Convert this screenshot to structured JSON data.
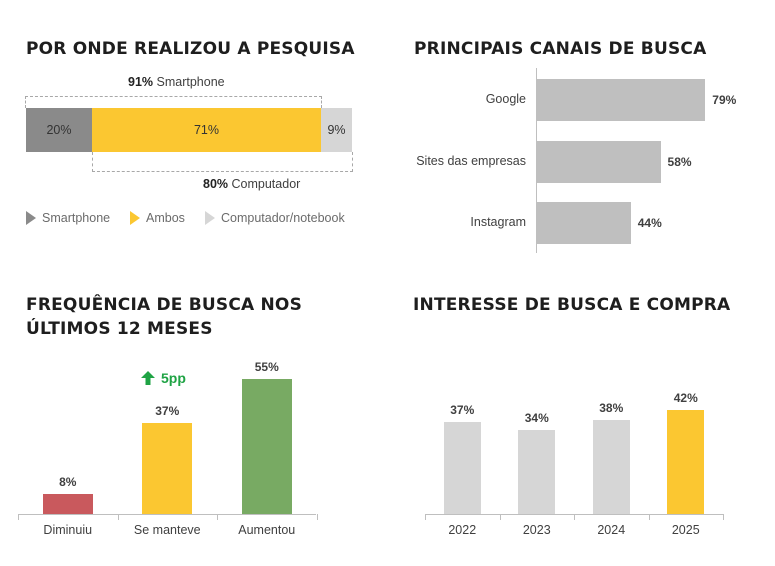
{
  "colors": {
    "dark_gray": "#8a8a8a",
    "yellow": "#fbc731",
    "light_gray": "#d6d6d6",
    "bar_gray": "#bfbfbf",
    "red": "#c9595d",
    "green": "#78aa63",
    "arrow_green": "#1fa344"
  },
  "chart_data": [
    {
      "type": "bar",
      "orientation": "horizontal-stacked",
      "title": "POR ONDE REALIZOU A PESQUISA",
      "series": [
        {
          "name": "Smartphone",
          "values": [
            20
          ],
          "label": "20%",
          "color": "#8a8a8a"
        },
        {
          "name": "Ambos",
          "values": [
            71
          ],
          "label": "71%",
          "color": "#fbc731"
        },
        {
          "name": "Computador/notebook",
          "values": [
            9
          ],
          "label": "9%",
          "color": "#d6d6d6"
        }
      ],
      "annotations": [
        {
          "value": "91%",
          "text": "Smartphone"
        },
        {
          "value": "80%",
          "text": "Computador"
        }
      ],
      "legend": "bottom"
    },
    {
      "type": "bar",
      "orientation": "horizontal",
      "title": "PRINCIPAIS CANAIS DE BUSCA",
      "categories": [
        "Google",
        "Sites das empresas",
        "Instagram"
      ],
      "values": [
        79,
        58,
        44
      ],
      "labels": [
        "79%",
        "58%",
        "44%"
      ],
      "max": 100
    },
    {
      "type": "bar",
      "title": "FREQUÊNCIA DE BUSCA NOS ÚLTIMOS 12 MESES",
      "categories": [
        "Diminuiu",
        "Se manteve",
        "Aumentou"
      ],
      "values": [
        8,
        37,
        55
      ],
      "labels": [
        "8%",
        "37%",
        "55%"
      ],
      "colors": [
        "#c9595d",
        "#fbc731",
        "#78aa63"
      ],
      "annotation": "5pp",
      "max": 55
    },
    {
      "type": "bar",
      "title": "INTERESSE DE BUSCA E COMPRA",
      "categories": [
        "2022",
        "2023",
        "2024",
        "2025"
      ],
      "values": [
        37,
        34,
        38,
        42
      ],
      "labels": [
        "37%",
        "34%",
        "38%",
        "42%"
      ],
      "colors": [
        "#d6d6d6",
        "#d6d6d6",
        "#d6d6d6",
        "#fbc731"
      ],
      "max": 42
    }
  ]
}
